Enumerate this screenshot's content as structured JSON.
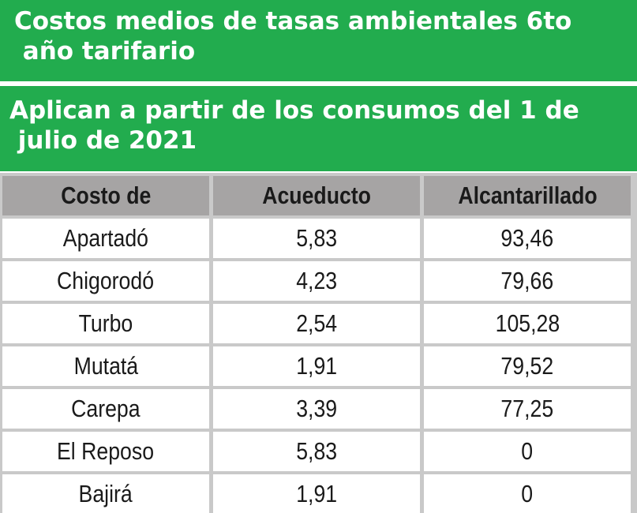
{
  "banner": {
    "title": "Costos medios de tasas ambientales 6to\n año tarifario",
    "subtitle": "Aplican a partir de los consumos del 1 de\n julio de 2021"
  },
  "table": {
    "headers": [
      "Costo de",
      "Acueducto",
      "Alcantarillado"
    ],
    "rows": [
      [
        "Apartadó",
        "5,83",
        "93,46"
      ],
      [
        "Chigorodó",
        "4,23",
        "79,66"
      ],
      [
        "Turbo",
        "2,54",
        "105,28"
      ],
      [
        "Mutatá",
        "1,91",
        "79,52"
      ],
      [
        "Carepa",
        "3,39",
        "77,25"
      ],
      [
        "El Reposo",
        "5,83",
        "0"
      ],
      [
        "Bajirá",
        "1,91",
        "0"
      ]
    ]
  },
  "colors": {
    "banner_green": "#22ac4e",
    "header_gray": "#a6a4a4",
    "grid_gray": "#c9c9c9"
  }
}
